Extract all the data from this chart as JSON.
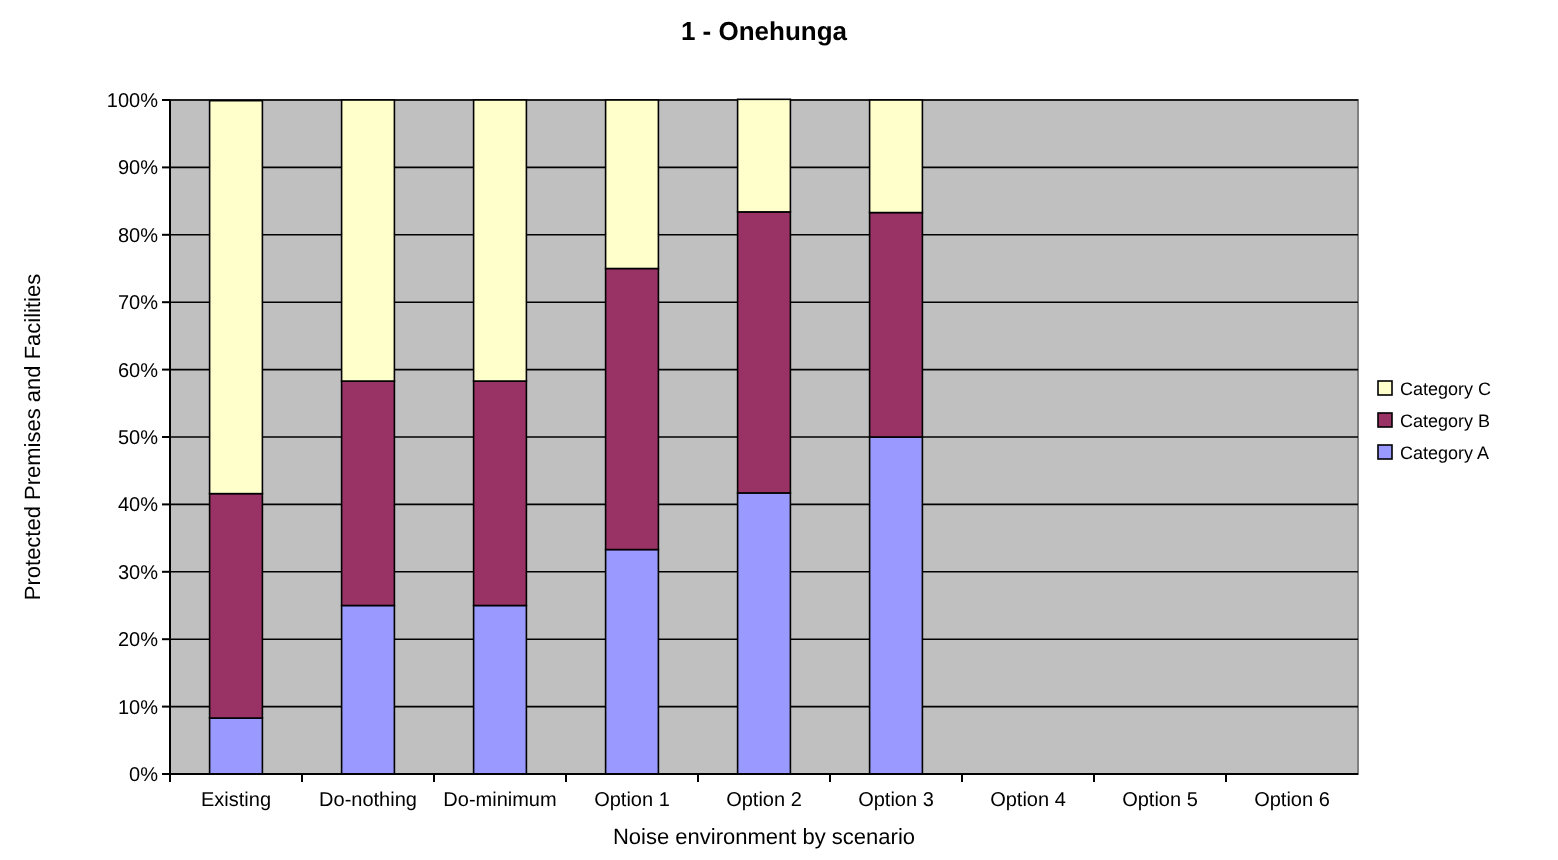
{
  "chart_data": {
    "type": "bar",
    "title": "1 - Onehunga",
    "xlabel": "Noise environment by scenario",
    "ylabel": "Protected Premises and Facilities",
    "categories": [
      "Existing",
      "Do-nothing",
      "Do-minimum",
      "Option 1",
      "Option 2",
      "Option 3",
      "Option 4",
      "Option 5",
      "Option 6"
    ],
    "stacked": true,
    "series": [
      {
        "name": "Category A",
        "color": "#9999ff",
        "values": [
          8.3,
          25,
          25,
          33.3,
          41.7,
          50,
          null,
          null,
          null
        ]
      },
      {
        "name": "Category B",
        "color": "#993366",
        "values": [
          33.3,
          33.3,
          33.3,
          41.7,
          41.7,
          33.3,
          null,
          null,
          null
        ]
      },
      {
        "name": "Category C",
        "color": "#ffffcc",
        "values": [
          58.3,
          41.7,
          41.7,
          25,
          16.7,
          16.7,
          null,
          null,
          null
        ]
      }
    ],
    "ylim": [
      0,
      100
    ],
    "yticks": [
      {
        "value": 0,
        "label": "0%"
      },
      {
        "value": 10,
        "label": "10%"
      },
      {
        "value": 20,
        "label": "20%"
      },
      {
        "value": 30,
        "label": "30%"
      },
      {
        "value": 40,
        "label": "40%"
      },
      {
        "value": 50,
        "label": "50%"
      },
      {
        "value": 60,
        "label": "60%"
      },
      {
        "value": 70,
        "label": "70%"
      },
      {
        "value": 80,
        "label": "80%"
      },
      {
        "value": 90,
        "label": "90%"
      },
      {
        "value": 100,
        "label": "100%"
      }
    ],
    "grid": "y",
    "legend": "right"
  }
}
